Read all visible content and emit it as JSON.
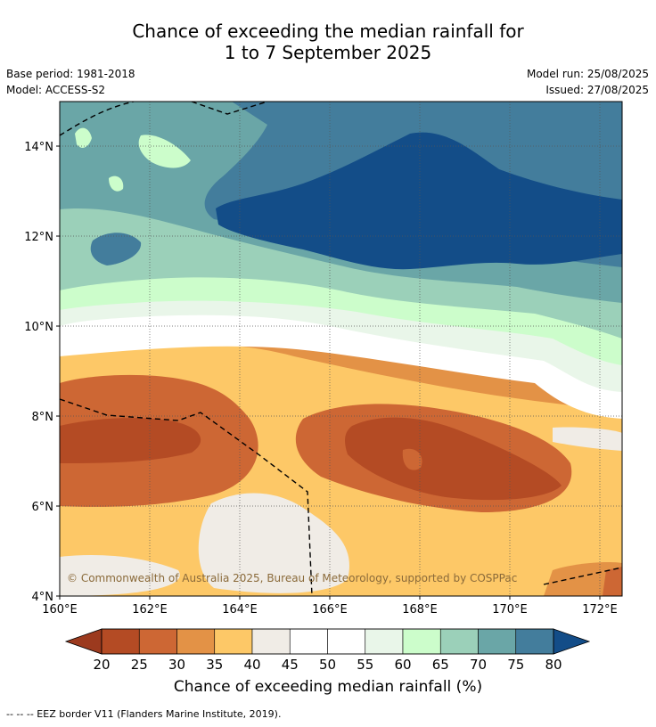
{
  "header": {
    "title_line1": "Chance of exceeding the median rainfall for",
    "title_line2": "1 to 7 September 2025",
    "base_period": "Base period: 1981-2018",
    "model": "Model: ACCESS-S2",
    "model_run": "Model run: 25/08/2025",
    "issued": "Issued: 27/08/2025"
  },
  "map": {
    "lat_labels": [
      "14°N",
      "12°N",
      "10°N",
      "8°N",
      "6°N",
      "4°N"
    ],
    "lon_labels": [
      "160°E",
      "162°E",
      "164°E",
      "166°E",
      "168°E",
      "170°E",
      "172°E"
    ],
    "copyright": "© Commonwealth of Australia 2025, Bureau of Meteorology, supported by COSPPac",
    "extent": {
      "lon": [
        160,
        172.5
      ],
      "lat": [
        4,
        15
      ]
    }
  },
  "colorbar": {
    "ticks": [
      "20",
      "25",
      "30",
      "35",
      "40",
      "45",
      "50",
      "55",
      "60",
      "65",
      "70",
      "75",
      "80"
    ],
    "colors": [
      "#b44b24",
      "#cd6734",
      "#e39246",
      "#fdc867",
      "#f0ece6",
      "#ffffff",
      "#ffffff",
      "#e9f6e9",
      "#ccfdcb",
      "#9bd0b9",
      "#6aa6a7",
      "#437d9c"
    ],
    "under_color": "#9c3a1e",
    "over_color": "#134d88",
    "label": "Chance of exceeding median rainfall (%)"
  },
  "footnote": "--  --  -- EEZ border V11 (Flanders Marine Institute, 2019)."
}
